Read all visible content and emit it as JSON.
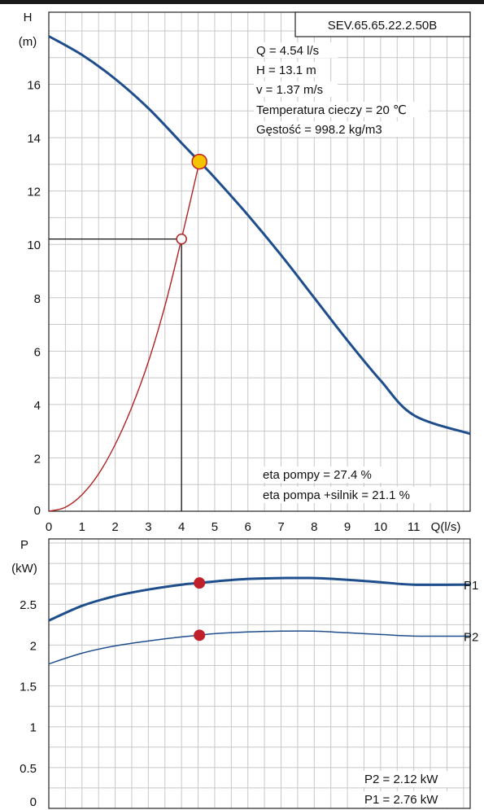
{
  "chart_data": [
    {
      "type": "line",
      "id": "head",
      "title": "SEV.65.65.22.2.50B",
      "ylabel_line1": "H",
      "ylabel_line2": "(m)",
      "xlabel": "Q(l/s)",
      "xlim": [
        0,
        12.7
      ],
      "ylim": [
        0,
        18.7
      ],
      "x_ticks": [
        0,
        1,
        2,
        3,
        4,
        5,
        6,
        7,
        8,
        9,
        10,
        11
      ],
      "y_ticks": [
        0,
        2,
        4,
        6,
        8,
        10,
        12,
        14,
        16
      ],
      "grid": true,
      "series": [
        {
          "role": "pump-curve",
          "color": "#1f4e8c",
          "x": [
            0,
            1,
            2,
            3,
            4,
            4.54,
            5,
            6,
            7,
            8,
            9,
            10,
            11,
            12.7
          ],
          "y": [
            17.8,
            17.1,
            16.2,
            15.1,
            13.8,
            13.1,
            12.5,
            11.1,
            9.6,
            8.0,
            6.4,
            4.9,
            3.6,
            2.9
          ]
        },
        {
          "role": "system-curve",
          "color": "#b22222",
          "x": [
            0,
            0.5,
            1,
            1.5,
            2,
            2.5,
            3,
            3.5,
            4,
            4.54
          ],
          "y": [
            0,
            0.15,
            0.62,
            1.4,
            2.5,
            3.9,
            5.6,
            7.7,
            10.2,
            13.1
          ]
        }
      ],
      "operating_point": {
        "x": 4.54,
        "y": 13.1,
        "color": "#f5c400"
      },
      "reference_point": {
        "x": 4.0,
        "y": 10.2
      },
      "info_lines": [
        "Q = 4.54 l/s",
        "H = 13.1 m",
        "v = 1.37 m/s",
        "Temperatura cieczy = 20 ℃",
        "Gęstość = 998.2 kg/m3"
      ],
      "efficiency_lines": [
        "eta pompy = 27.4 %",
        "eta pompa +silnik = 21.1 %"
      ]
    },
    {
      "type": "line",
      "id": "power",
      "ylabel_line1": "P",
      "ylabel_line2": "(kW)",
      "xlim": [
        0,
        12.7
      ],
      "ylim": [
        0,
        3.3
      ],
      "y_ticks": [
        0,
        0.5,
        1,
        1.5,
        2,
        2.5
      ],
      "grid": true,
      "series": [
        {
          "name": "P1",
          "color": "#1f4e8c",
          "x": [
            0,
            1,
            2,
            3,
            4,
            4.54,
            5,
            6,
            7,
            8,
            9,
            10,
            11,
            12.7
          ],
          "y": [
            2.3,
            2.48,
            2.6,
            2.68,
            2.74,
            2.76,
            2.78,
            2.81,
            2.82,
            2.82,
            2.8,
            2.77,
            2.74,
            2.74
          ]
        },
        {
          "name": "P2",
          "color": "#1f4e8c",
          "x": [
            0,
            1,
            2,
            3,
            4,
            4.54,
            5,
            6,
            7,
            8,
            9,
            10,
            11,
            12.7
          ],
          "y": [
            1.77,
            1.9,
            1.99,
            2.05,
            2.1,
            2.12,
            2.14,
            2.16,
            2.17,
            2.17,
            2.15,
            2.13,
            2.11,
            2.11
          ]
        }
      ],
      "points": [
        {
          "x": 4.54,
          "y": 2.76,
          "color": "#c0202a"
        },
        {
          "x": 4.54,
          "y": 2.12,
          "color": "#c0202a"
        }
      ],
      "info_lines": [
        "P2 = 2.12 kW",
        "P1 = 2.76 kW"
      ]
    }
  ]
}
